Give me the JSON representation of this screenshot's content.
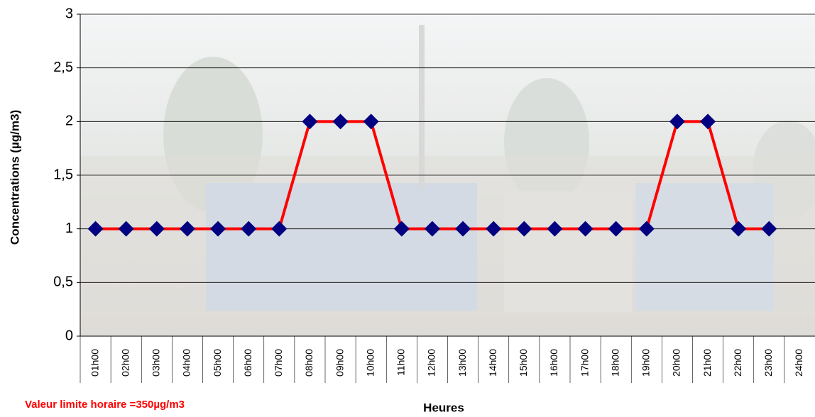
{
  "chart_data": {
    "type": "line",
    "y_label": "Concentrations (µg/m3)",
    "x_label": "Heures",
    "annotation": "Valeur limite horaire =350µg/m3",
    "categories": [
      "01h00",
      "02h00",
      "03h00",
      "04h00",
      "05h00",
      "06h00",
      "07h00",
      "08h00",
      "09h00",
      "10h00",
      "11h00",
      "12h00",
      "13h00",
      "14h00",
      "15h00",
      "16h00",
      "17h00",
      "18h00",
      "19h00",
      "20h00",
      "21h00",
      "22h00",
      "23h00",
      "24h00"
    ],
    "values": [
      1,
      1,
      1,
      1,
      1,
      1,
      1,
      2,
      2,
      2,
      1,
      1,
      1,
      1,
      1,
      1,
      1,
      1,
      1,
      2,
      2,
      1,
      1,
      null
    ],
    "color": "#ff0000",
    "marker_color": "#000080",
    "ylim": [
      0,
      3
    ],
    "yticks": [
      0,
      {
        "value": 0.5,
        "label": "0,5"
      },
      1,
      {
        "value": 1.5,
        "label": "1,5"
      },
      2,
      {
        "value": 2.5,
        "label": "2,5"
      },
      3
    ],
    "grid": true
  }
}
